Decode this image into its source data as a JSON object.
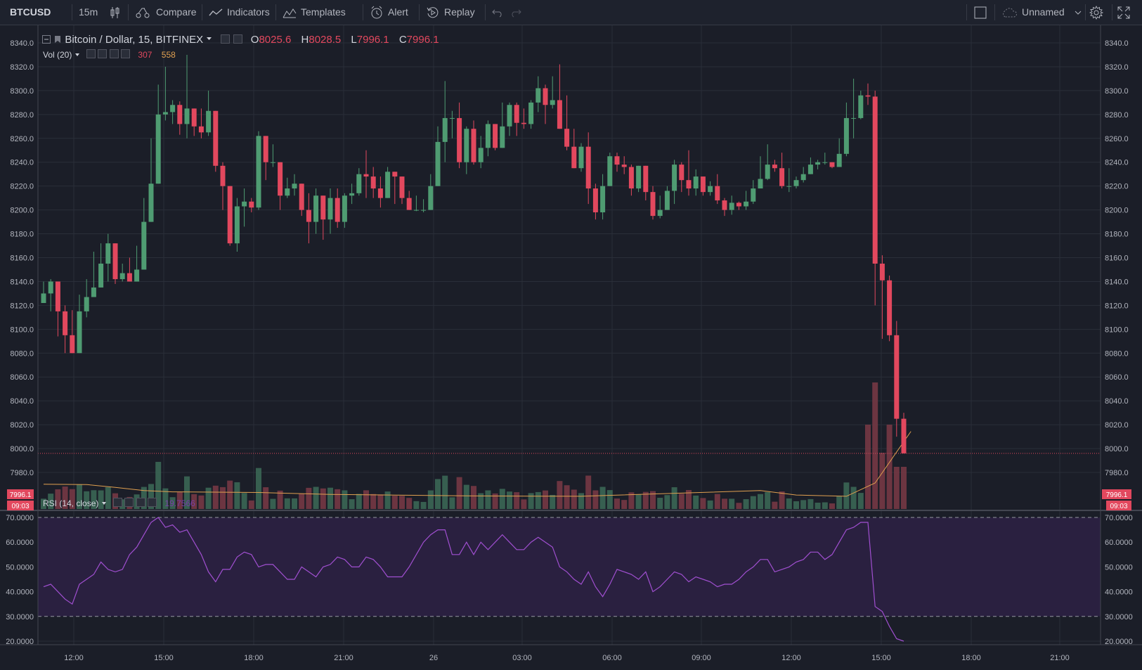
{
  "toolbar": {
    "symbol": "BTCUSD",
    "interval": "15m",
    "compare": "Compare",
    "indicators": "Indicators",
    "templates": "Templates",
    "alert": "Alert",
    "replay": "Replay",
    "layout_name": "Unnamed"
  },
  "legend": {
    "title": "Bitcoin / Dollar, 15, BITFINEX",
    "o_label": "O",
    "o_value": "8025.6",
    "h_label": "H",
    "h_value": "8028.5",
    "l_label": "L",
    "l_value": "7996.1",
    "c_label": "C",
    "c_value": "7996.1",
    "vol_label": "Vol (20)",
    "vol_value": "307",
    "vol_ma_value": "558",
    "rsi_label": "RSI (14, close)",
    "rsi_value": "19.7566"
  },
  "price_tag": {
    "value": "7996.1",
    "countdown": "09:03"
  },
  "colors": {
    "up": "#4f9c72",
    "down": "#e2485e",
    "vol_up": "#3c6b57",
    "vol_down": "#7a3a45",
    "vol_ma": "#e0a050",
    "rsi_line": "#a04fd0",
    "rsi_fill": "#2a2040"
  },
  "chart_data": [
    {
      "type": "candlestick",
      "title": "Bitcoin / Dollar, 15, BITFINEX",
      "ylim": [
        7970,
        8350
      ],
      "y_ticks": [
        "8340.0",
        "8320.0",
        "8300.0",
        "8280.0",
        "8260.0",
        "8240.0",
        "8220.0",
        "8200.0",
        "8180.0",
        "8160.0",
        "8140.0",
        "8120.0",
        "8100.0",
        "8080.0",
        "8060.0",
        "8040.0",
        "8020.0",
        "8000.0",
        "7980.0"
      ],
      "x_ticks": [
        "12:00",
        "15:00",
        "18:00",
        "21:00",
        "26",
        "03:00",
        "06:00",
        "09:00",
        "12:00",
        "15:00",
        "18:00",
        "21:00"
      ],
      "closes": [
        8130,
        8140,
        8115,
        8095,
        8080,
        8115,
        8127,
        8135,
        8155,
        8172,
        8142,
        8147,
        8140,
        8150,
        8190,
        8222,
        8280,
        8282,
        8288,
        8272,
        8285,
        8270,
        8265,
        8283,
        8237,
        8220,
        8172,
        8203,
        8207,
        8202,
        8262,
        8240,
        8240,
        8212,
        8218,
        8222,
        8200,
        8190,
        8212,
        8192,
        8210,
        8190,
        8212,
        8214,
        8230,
        8228,
        8218,
        8210,
        8232,
        8228,
        8210,
        8200,
        8200,
        8200,
        8220,
        8257,
        8277,
        8277,
        8240,
        8268,
        8240,
        8252,
        8272,
        8252,
        8270,
        8288,
        8273,
        8272,
        8290,
        8302,
        8288,
        8292,
        8268,
        8253,
        8235,
        8253,
        8218,
        8198,
        8220,
        8245,
        8238,
        8236,
        8218,
        8237,
        8215,
        8195,
        8200,
        8216,
        8238,
        8225,
        8218,
        8228,
        8215,
        8220,
        8208,
        8200,
        8206,
        8203,
        8207,
        8218,
        8226,
        8238,
        8235,
        8220,
        8220,
        8225,
        8230,
        8238,
        8240,
        8240,
        8236,
        8247,
        8277,
        8277,
        8296,
        8295,
        8155,
        8141,
        8095,
        8025,
        7996
      ],
      "highs": [
        8140,
        8142,
        8124,
        8120,
        8116,
        8129,
        8142,
        8165,
        8172,
        8180,
        8155,
        8155,
        8160,
        8170,
        8210,
        8260,
        8305,
        8320,
        8292,
        8291,
        8330,
        8285,
        8285,
        8300,
        8260,
        8240,
        8210,
        8210,
        8218,
        8210,
        8266,
        8262,
        8255,
        8225,
        8227,
        8230,
        8216,
        8214,
        8218,
        8210,
        8218,
        8218,
        8214,
        8222,
        8235,
        8250,
        8236,
        8228,
        8236,
        8230,
        8222,
        8216,
        8212,
        8209,
        8230,
        8270,
        8308,
        8283,
        8290,
        8270,
        8275,
        8262,
        8275,
        8272,
        8290,
        8290,
        8290,
        8285,
        8292,
        8312,
        8305,
        8312,
        8322,
        8296,
        8268,
        8256,
        8265,
        8222,
        8230,
        8248,
        8248,
        8245,
        8238,
        8235,
        8233,
        8220,
        8212,
        8220,
        8242,
        8240,
        8250,
        8234,
        8226,
        8224,
        8230,
        8210,
        8212,
        8207,
        8216,
        8225,
        8245,
        8255,
        8242,
        8248,
        8235,
        8228,
        8236,
        8244,
        8242,
        8248,
        8240,
        8260,
        8290,
        8310,
        8300,
        8306,
        8300,
        8162,
        8145,
        8107,
        8030
      ],
      "lows": [
        8125,
        8115,
        8094,
        8080,
        8080,
        8092,
        8110,
        8128,
        8142,
        8140,
        8138,
        8140,
        8140,
        8145,
        8182,
        8220,
        8222,
        8275,
        8272,
        8263,
        8260,
        8262,
        8260,
        8262,
        8232,
        8200,
        8170,
        8165,
        8186,
        8198,
        8200,
        8225,
        8236,
        8200,
        8210,
        8212,
        8195,
        8172,
        8180,
        8175,
        8180,
        8185,
        8185,
        8205,
        8212,
        8210,
        8210,
        8202,
        8210,
        8205,
        8205,
        8200,
        8199,
        8198,
        8200,
        8220,
        8240,
        8260,
        8235,
        8230,
        8238,
        8235,
        8245,
        8250,
        8255,
        8262,
        8262,
        8268,
        8268,
        8282,
        8272,
        8285,
        8270,
        8250,
        8235,
        8232,
        8205,
        8192,
        8192,
        8220,
        8232,
        8230,
        8212,
        8215,
        8208,
        8192,
        8193,
        8200,
        8205,
        8215,
        8212,
        8212,
        8212,
        8212,
        8205,
        8195,
        8196,
        8200,
        8200,
        8205,
        8218,
        8225,
        8232,
        8218,
        8215,
        8218,
        8223,
        8230,
        8234,
        8238,
        8235,
        8240,
        8245,
        8260,
        8276,
        8288,
        8120,
        8092,
        8090,
        8010,
        7996
      ]
    },
    {
      "type": "bar",
      "title": "Vol (20)",
      "last_value": 307,
      "ma_last_value": 558,
      "ma": [
        {
          "x": 0,
          "y": 140
        },
        {
          "x": 6,
          "y": 138
        },
        {
          "x": 10,
          "y": 115
        },
        {
          "x": 14,
          "y": 90
        },
        {
          "x": 18,
          "y": 80
        },
        {
          "x": 30,
          "y": 75
        },
        {
          "x": 40,
          "y": 60
        },
        {
          "x": 60,
          "y": 48
        },
        {
          "x": 75,
          "y": 45
        },
        {
          "x": 100,
          "y": 90
        },
        {
          "x": 105,
          "y": 55
        },
        {
          "x": 112,
          "y": 45
        },
        {
          "x": 116,
          "y": 150
        },
        {
          "x": 121,
          "y": 558
        }
      ]
    },
    {
      "type": "line",
      "title": "RSI (14, close)",
      "ylim": [
        17,
        72
      ],
      "y_ticks": [
        "70.0000",
        "60.0000",
        "50.0000",
        "40.0000",
        "30.0000",
        "20.0000"
      ],
      "bands": [
        30,
        70
      ],
      "last_value": 19.7566,
      "values": [
        42,
        43,
        40,
        37,
        35,
        43,
        45,
        47,
        52,
        49,
        48,
        49,
        55,
        58,
        63,
        68,
        70,
        66,
        67,
        64,
        65,
        60,
        55,
        48,
        44,
        49,
        49,
        54,
        56,
        55,
        50,
        51,
        51,
        48,
        45,
        45,
        50,
        48,
        46,
        50,
        51,
        54,
        53,
        50,
        50,
        54,
        53,
        50,
        46,
        46,
        46,
        50,
        55,
        60,
        63,
        65,
        65,
        55,
        55,
        60,
        55,
        60,
        57,
        60,
        63,
        60,
        57,
        57,
        60,
        62,
        60,
        58,
        50,
        48,
        45,
        43,
        48,
        42,
        38,
        43,
        49,
        48,
        47,
        45,
        48,
        40,
        42,
        45,
        48,
        47,
        44,
        46,
        45,
        44,
        42,
        43,
        43,
        45,
        48,
        50,
        53,
        53,
        48,
        49,
        50,
        52,
        53,
        56,
        56,
        53,
        55,
        60,
        65,
        66,
        68,
        68,
        34,
        32,
        26,
        21,
        20
      ]
    }
  ]
}
